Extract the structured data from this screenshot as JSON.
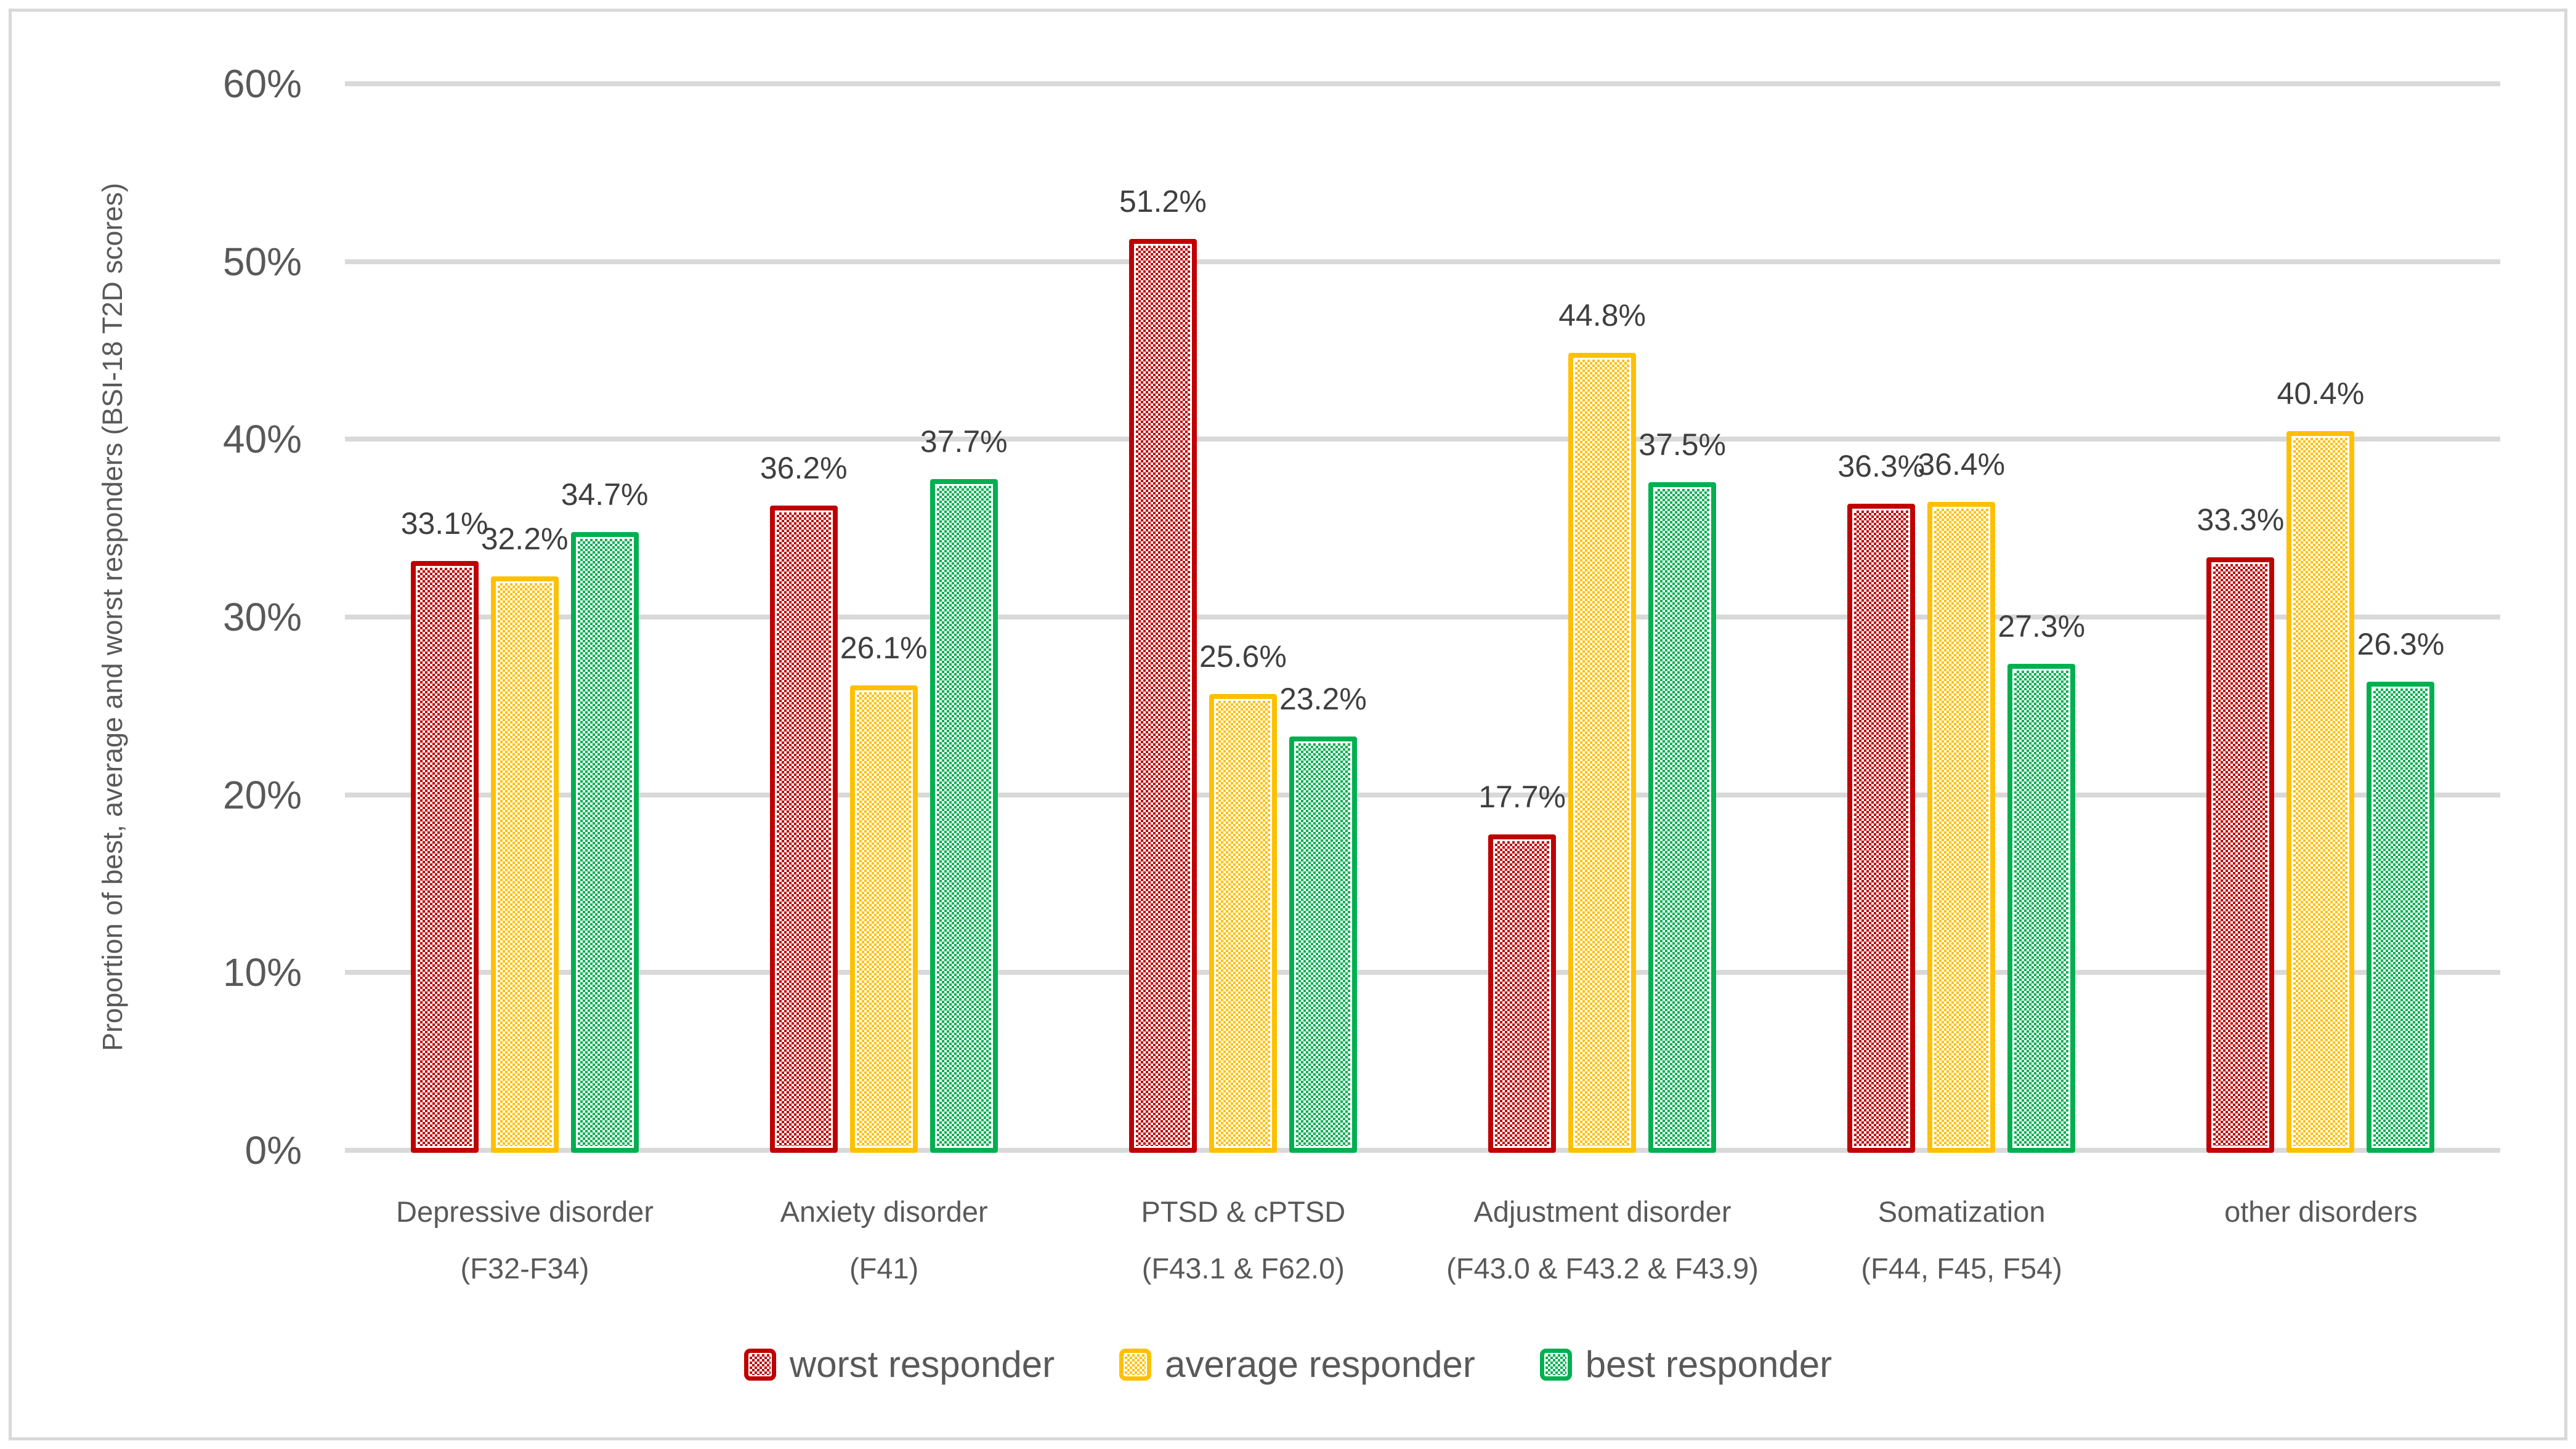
{
  "chart_data": {
    "type": "bar",
    "ylabel": "Proportion of best, average and worst responders (BSI-18 T2D scores)",
    "xlabel": "",
    "ylim": [
      0,
      60
    ],
    "grid": true,
    "gridline_color": "#d9d9d9",
    "legend_position": "bottom",
    "y_ticks": [
      {
        "value": 0,
        "label": "0%"
      },
      {
        "value": 10,
        "label": "10%"
      },
      {
        "value": 20,
        "label": "20%"
      },
      {
        "value": 30,
        "label": "30%"
      },
      {
        "value": 40,
        "label": "40%"
      },
      {
        "value": 50,
        "label": "50%"
      },
      {
        "value": 60,
        "label": "60%"
      }
    ],
    "categories": [
      {
        "line1": "Depressive disorder",
        "line2": "(F32-F34)"
      },
      {
        "line1": "Anxiety disorder",
        "line2": "(F41)"
      },
      {
        "line1": "PTSD & cPTSD",
        "line2": "(F43.1 & F62.0)"
      },
      {
        "line1": "Adjustment disorder",
        "line2": "(F43.0 & F43.2 & F43.9)"
      },
      {
        "line1": "Somatization",
        "line2": "(F44, F45, F54)"
      },
      {
        "line1": "other disorders",
        "line2": ""
      }
    ],
    "series": [
      {
        "name": "worst responder",
        "color": "#c00000",
        "values": [
          33.1,
          36.2,
          51.2,
          17.7,
          36.3,
          33.3
        ],
        "labels": [
          "33.1%",
          "36.2%",
          "51.2%",
          "17.7%",
          "36.3%",
          "33.3%"
        ]
      },
      {
        "name": "average responder",
        "color": "#ffc000",
        "values": [
          32.2,
          26.1,
          25.6,
          44.8,
          36.4,
          40.4
        ],
        "labels": [
          "32.2%",
          "26.1%",
          "25.6%",
          "44.8%",
          "36.4%",
          "40.4%"
        ]
      },
      {
        "name": "best responder",
        "color": "#00b050",
        "values": [
          34.7,
          37.7,
          23.2,
          37.5,
          27.3,
          26.3
        ],
        "labels": [
          "34.7%",
          "37.7%",
          "23.2%",
          "37.5%",
          "27.3%",
          "26.3%"
        ]
      }
    ]
  }
}
